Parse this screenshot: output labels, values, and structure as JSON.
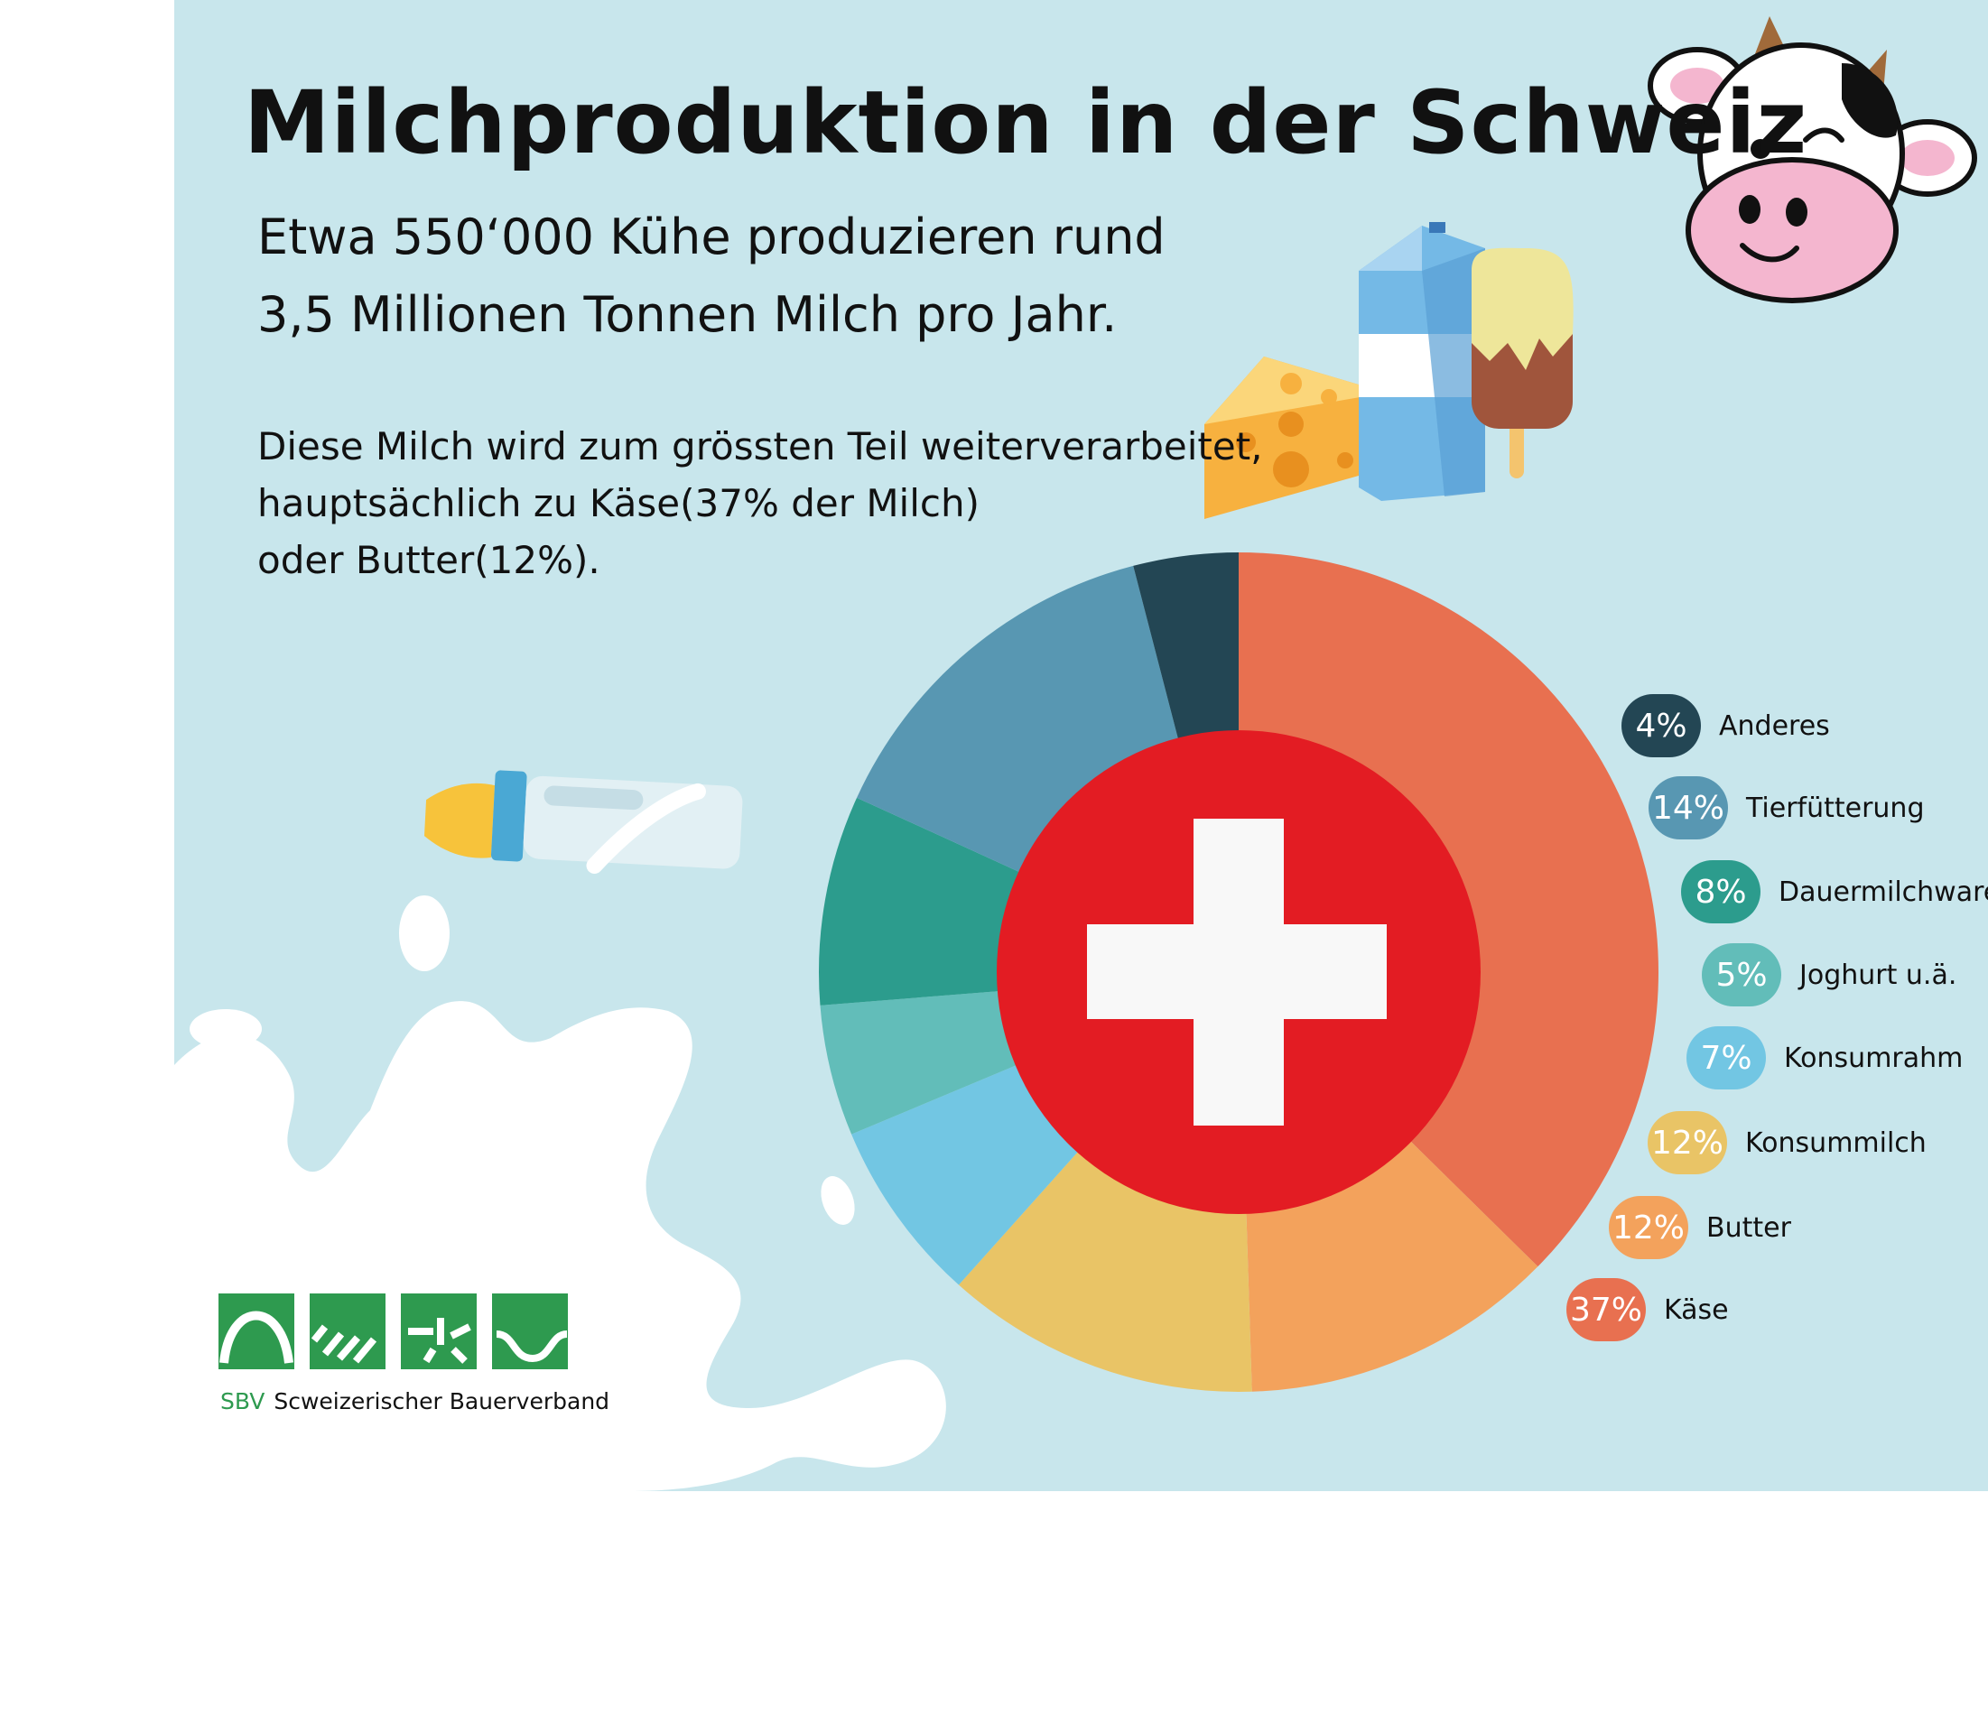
{
  "title": "Milchproduktion in der Schweiz",
  "subtitle": {
    "line1": "Etwa 550‘000 Kühe produzieren rund",
    "line2": "3,5 Millionen Tonnen Milch pro Jahr."
  },
  "body": {
    "line1": "Diese Milch wird zum grössten Teil weiterverarbeitet,",
    "line2": "hauptsächlich zu Käse(37% der Milch)",
    "line3": "oder Butter(12%)."
  },
  "chart_data": {
    "type": "pie",
    "donut": true,
    "start_angle_deg": 0,
    "direction": "clockwise",
    "slices": [
      {
        "label": "Käse",
        "value": 37,
        "value_label": "37%",
        "color": "#e87050"
      },
      {
        "label": "Butter",
        "value": 12,
        "value_label": "12%",
        "color": "#f3a25c"
      },
      {
        "label": "Konsummilch",
        "value": 12,
        "value_label": "12%",
        "color": "#e9c466"
      },
      {
        "label": "Konsumrahm",
        "value": 7,
        "value_label": "7%",
        "color": "#72c6e3"
      },
      {
        "label": "Joghurt u.ä.",
        "value": 5,
        "value_label": "5%",
        "color": "#62bdb9"
      },
      {
        "label": "Dauermilchware",
        "value": 8,
        "value_label": "8%",
        "color": "#2c9c8d"
      },
      {
        "label": "Tierfütterung",
        "value": 14,
        "value_label": "14%",
        "color": "#5897b2"
      },
      {
        "label": "Anderes",
        "value": 4,
        "value_label": "4%",
        "color": "#234654"
      }
    ],
    "legend_order": [
      "Anderes",
      "Tierfütterung",
      "Dauermilchware",
      "Joghurt u.ä.",
      "Konsumrahm",
      "Konsummilch",
      "Butter",
      "Käse"
    ],
    "legend_position": "right",
    "center_emblem": "swiss-flag-icon"
  },
  "logo": {
    "abbr": "SBV",
    "name": "Scweizerischer Bauerverband",
    "color": "#2e9a4f"
  },
  "colors": {
    "background": "#c8e6ec",
    "flag_red": "#e31c23",
    "cross_white": "#f8f8f8"
  },
  "icons": [
    "cow-icon",
    "cheese-icon",
    "milk-carton-icon",
    "ice-cream-icon",
    "baby-bottle-icon",
    "milk-splash-icon",
    "sbv-logo-icon"
  ]
}
